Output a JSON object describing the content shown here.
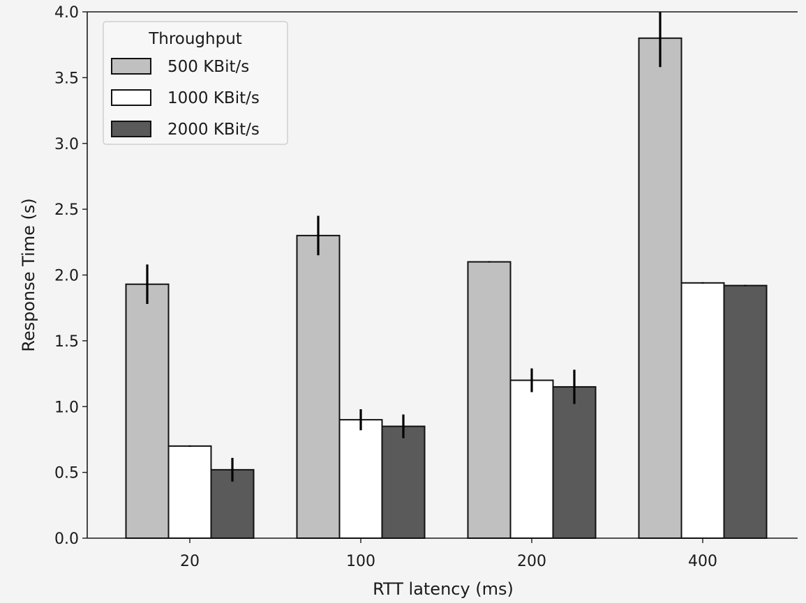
{
  "chart_data": {
    "type": "bar",
    "title": "",
    "xlabel": "RTT latency (ms)",
    "ylabel": "Response Time (s)",
    "categories": [
      "20",
      "100",
      "200",
      "400"
    ],
    "ylim": [
      0,
      4.0
    ],
    "yticks": [
      "0.0",
      "0.5",
      "1.0",
      "1.5",
      "2.0",
      "2.5",
      "3.0",
      "3.5",
      "4.0"
    ],
    "grid": false,
    "legend": {
      "title": "Throughput",
      "placement": "top-left"
    },
    "series": [
      {
        "name": "500 KBit/s",
        "color": "#c0c0c0",
        "values": [
          1.93,
          2.3,
          2.1,
          3.8
        ],
        "errors": [
          0.15,
          0.15,
          0.005,
          0.22
        ]
      },
      {
        "name": "1000 KBit/s",
        "color": "#ffffff",
        "values": [
          0.7,
          0.9,
          1.2,
          1.94
        ],
        "errors": [
          0.005,
          0.08,
          0.09,
          0.005
        ]
      },
      {
        "name": "2000 KBit/s",
        "color": "#5a5a5a",
        "values": [
          0.52,
          0.85,
          1.15,
          1.92
        ],
        "errors": [
          0.09,
          0.09,
          0.13,
          0.005
        ]
      }
    ]
  }
}
